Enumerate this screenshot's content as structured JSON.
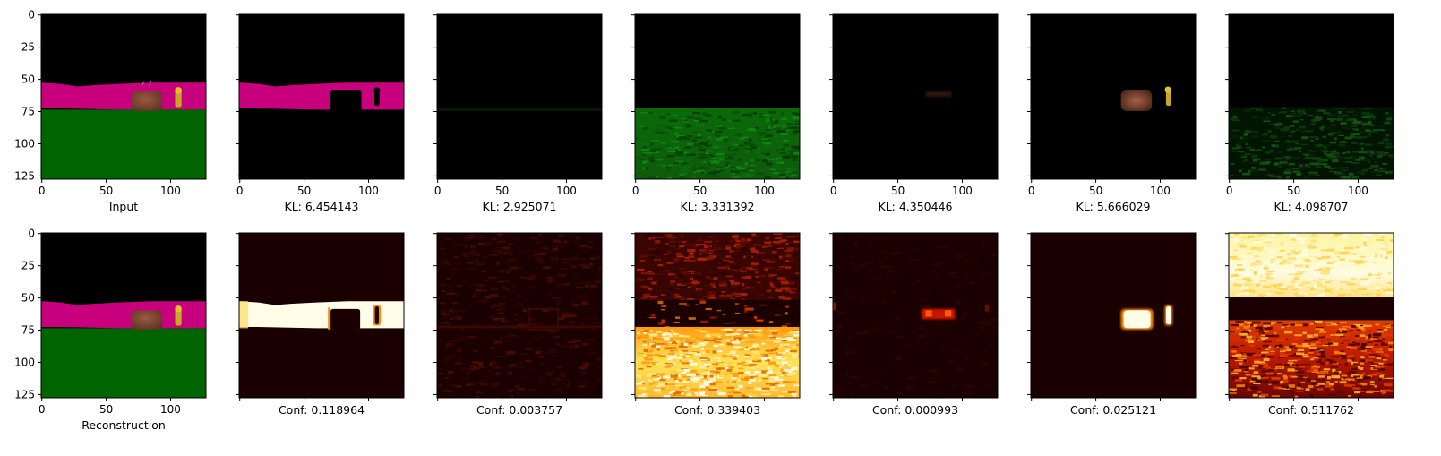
{
  "figure": {
    "top_row_labels": [
      "Input",
      "KL: 6.454143",
      "KL: 2.925071",
      "KL: 3.331392",
      "KL: 4.350446",
      "KL: 5.666029",
      "KL: 4.098707"
    ],
    "bottom_row_labels": [
      "Reconstruction",
      "Conf: 0.118964",
      "Conf: 0.003757",
      "Conf: 0.339403",
      "Conf: 0.000993",
      "Conf: 0.025121",
      "Conf: 0.511762"
    ]
  },
  "chart_data": {
    "type": "heatmap",
    "description_grid": "2 rows x 7 image panels",
    "image_size": [
      128,
      128
    ],
    "x_ticks": [
      0,
      50,
      100
    ],
    "y_ticks": [
      0,
      25,
      50,
      75,
      100,
      125
    ],
    "xlim": [
      0,
      128
    ],
    "ylim": [
      128,
      0
    ],
    "top_row": {
      "panels": [
        {
          "label": "Input",
          "content": "scene"
        },
        {
          "label": "KL: 6.454143",
          "kl": 6.454143,
          "content": "mask-wall"
        },
        {
          "label": "KL: 2.925071",
          "kl": 2.925071,
          "content": "near-empty"
        },
        {
          "label": "KL: 3.331392",
          "kl": 3.331392,
          "content": "mask-floor"
        },
        {
          "label": "KL: 4.350446",
          "kl": 4.350446,
          "content": "near-empty"
        },
        {
          "label": "KL: 5.666029",
          "kl": 5.666029,
          "content": "mask-objects"
        },
        {
          "label": "KL: 4.098707",
          "kl": 4.098707,
          "content": "mask-floor-faint"
        }
      ]
    },
    "bottom_row": {
      "panels": [
        {
          "label": "Reconstruction",
          "content": "scene"
        },
        {
          "label": "Conf: 0.118964",
          "conf": 0.118964,
          "content": "heat-wall"
        },
        {
          "label": "Conf: 0.003757",
          "conf": 0.003757,
          "content": "heat-faint"
        },
        {
          "label": "Conf: 0.339403",
          "conf": 0.339403,
          "content": "heat-floor"
        },
        {
          "label": "Conf: 0.000993",
          "conf": 0.000993,
          "content": "heat-box"
        },
        {
          "label": "Conf: 0.025121",
          "conf": 0.025121,
          "content": "heat-objects"
        },
        {
          "label": "Conf: 0.511762",
          "conf": 0.511762,
          "content": "heat-sky"
        }
      ]
    },
    "colors": {
      "wall": "#c8007e",
      "floor": "#006400",
      "box": "#7a4532",
      "key": "#c8a81e",
      "background": "#000000",
      "heat_dark": "#1a0000",
      "heat_red": "#c81800",
      "heat_orange": "#ff8a00",
      "heat_yellow": "#ffe830",
      "heat_white": "#fffce8"
    }
  }
}
